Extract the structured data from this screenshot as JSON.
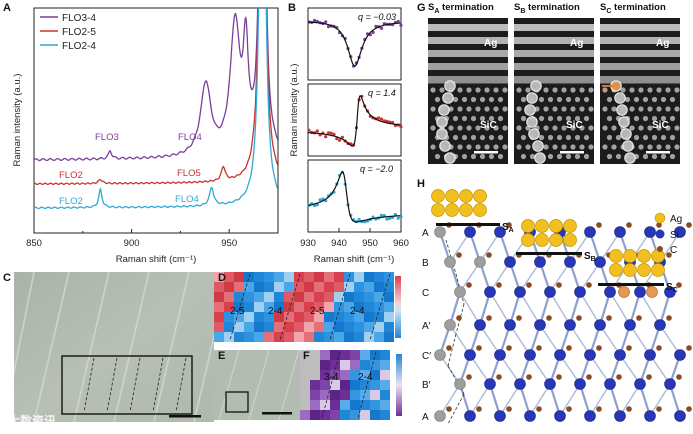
{
  "panel_letters": {
    "a": "A",
    "b": "B",
    "c": "C",
    "d": "D",
    "e": "E",
    "f": "F",
    "g": "G",
    "h": "H"
  },
  "panelA": {
    "legend": [
      {
        "label": "FLO3-4",
        "color": "#7b3f9a"
      },
      {
        "label": "FLO2-5",
        "color": "#c9332e"
      },
      {
        "label": "FLO2-4",
        "color": "#31a9d6"
      }
    ],
    "ylabel": "Raman intensity (a.u.)",
    "xlabel": "Raman shift (cm⁻¹)",
    "xticks": [
      "850",
      "900",
      "950"
    ],
    "annotations": {
      "flo3": "FLO3",
      "flo4_purple": "FLO4",
      "flo2_red": "FLO2",
      "flo5": "FLO5",
      "flo2_blue": "FLO2",
      "flo4_blue": "FLO4"
    }
  },
  "panelB": {
    "ylabel": "Raman intensity (a.u.)",
    "xlabel": "Raman shift (cm⁻¹)",
    "xticks": [
      "930",
      "940",
      "950",
      "960"
    ],
    "q_labels": [
      "q = −0.03",
      "q = 1.4",
      "q = −2.0"
    ],
    "colors": [
      "#7b3f9a",
      "#c9332e",
      "#31a9d6"
    ]
  },
  "chart_data": [
    {
      "type": "line",
      "panel": "A",
      "xlim": [
        850,
        975
      ],
      "series": [
        {
          "name": "FLO3-4",
          "color": "#7b3f9a",
          "peaks_cm1": [
            889,
            938,
            953,
            958
          ]
        },
        {
          "name": "FLO2-5",
          "color": "#c9332e",
          "peaks_cm1": [
            884,
            947
          ]
        },
        {
          "name": "FLO2-4",
          "color": "#31a9d6",
          "peaks_cm1": [
            884,
            941
          ]
        }
      ]
    },
    {
      "type": "scatter",
      "panel": "B",
      "xlim": [
        930,
        960
      ],
      "series": [
        {
          "name": "q = −0.03",
          "color": "#7b3f9a",
          "q": -0.03
        },
        {
          "name": "q = 1.4",
          "color": "#c9332e",
          "q": 1.4
        },
        {
          "name": "q = −2.0",
          "color": "#31a9d6",
          "q": -2.0
        }
      ]
    }
  ],
  "panelD": {
    "labels": [
      "2-5",
      "2-4",
      "2-5",
      "2-4"
    ]
  },
  "panelF": {
    "labels": [
      "3-4",
      "2-4"
    ]
  },
  "panelG": {
    "titles": [
      {
        "main": "S",
        "sub": "A",
        "rest": " termination"
      },
      {
        "main": "S",
        "sub": "B",
        "rest": " termination"
      },
      {
        "main": "S",
        "sub": "C",
        "rest": " termination"
      }
    ],
    "ag": "Ag",
    "sic": "SiC"
  },
  "panelH": {
    "legend": [
      {
        "label": "Ag",
        "color": "#f2c01e"
      },
      {
        "label": "Si",
        "color": "#2837b8"
      },
      {
        "label": "C",
        "color": "#8a4a22"
      }
    ],
    "stack": [
      "A",
      "B",
      "C",
      "A′",
      "C′",
      "B′",
      "A"
    ],
    "s_labels": [
      {
        "main": "S",
        "sub": "A"
      },
      {
        "main": "S",
        "sub": "B"
      },
      {
        "main": "S",
        "sub": "C"
      }
    ]
  },
  "watermark": "大数资讯"
}
